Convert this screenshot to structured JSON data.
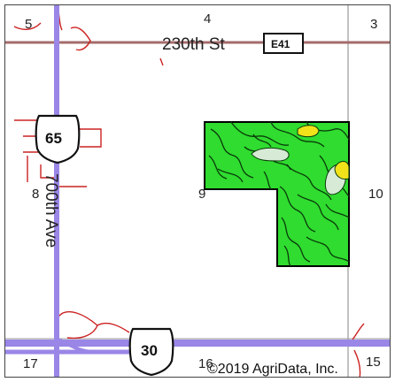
{
  "map": {
    "sections": [
      "5",
      "4",
      "3",
      "8",
      "9",
      "10",
      "17",
      "16",
      "15"
    ],
    "roads": {
      "east_west": "230th St",
      "north_south": "700th Ave",
      "county_route": "E41"
    },
    "highways": [
      "65",
      "30"
    ],
    "copyright": "©2019 AgriData, Inc.",
    "colors": {
      "field_fill": "#2fdc2f",
      "field_outline": "#000000",
      "soil_light": "#d6ead6",
      "soil_yellow": "#f2e21a",
      "highway_line": "#9a86e6",
      "road_line": "#a56b6b",
      "section_line": "#9a9a9a",
      "drainage": "#cc2222"
    }
  }
}
